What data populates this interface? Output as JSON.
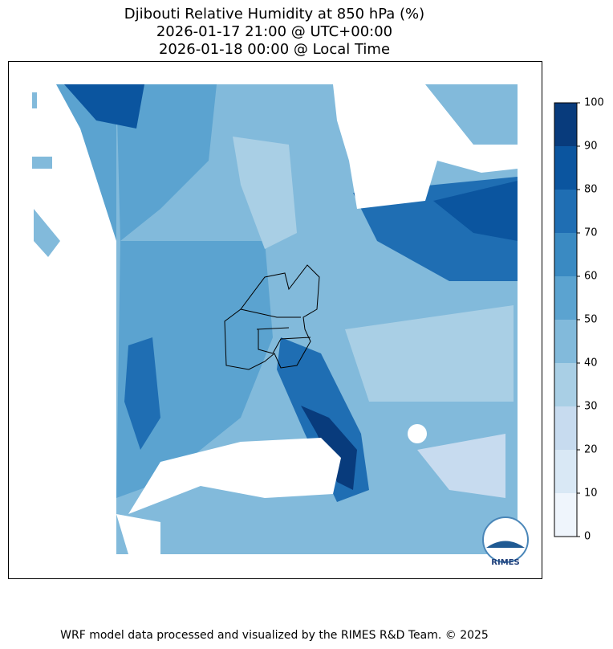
{
  "title": [
    "Djibouti Relative Humidity at 850 hPa (%)",
    "2026-01-17 21:00 @ UTC+00:00",
    "2026-01-18 00:00 @ Local Time"
  ],
  "colorbar": {
    "ticks": [
      0,
      10,
      20,
      30,
      40,
      50,
      60,
      70,
      80,
      90,
      100
    ],
    "colors": [
      "#eff5fc",
      "#d9e8f5",
      "#c7dbef",
      "#a9cfe5",
      "#82badb",
      "#5ba3d0",
      "#3a8ac2",
      "#1f6eb3",
      "#0b559f",
      "#083b7c"
    ]
  },
  "logo": "RIMES",
  "footer": "WRF model data processed and visualized by the RIMES R&D Team. © 2025"
}
